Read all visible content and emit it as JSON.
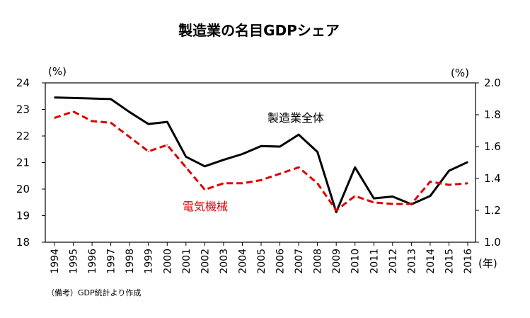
{
  "chart_data": {
    "type": "line",
    "title": "製造業の名目GDPシェア",
    "left_unit": "(%)",
    "right_unit": "(%)",
    "x_unit": "(年)",
    "source": "（備考）GDP統計より作成",
    "x": [
      "1994",
      "1995",
      "1996",
      "1997",
      "1998",
      "1999",
      "2000",
      "2001",
      "2002",
      "2003",
      "2004",
      "2005",
      "2006",
      "2007",
      "2008",
      "2009",
      "2010",
      "2011",
      "2012",
      "2013",
      "2014",
      "2015",
      "2016"
    ],
    "left_axis": {
      "ylim": [
        18,
        24
      ],
      "ticks": [
        "24",
        "23",
        "22",
        "21",
        "20",
        "19",
        "18"
      ]
    },
    "right_axis": {
      "ylim": [
        1.0,
        2.0
      ],
      "ticks": [
        "2.0",
        "1.8",
        "1.6",
        "1.4",
        "1.2",
        "1.0"
      ]
    },
    "series": [
      {
        "name": "製造業全体",
        "axis": "left",
        "color": "#000000",
        "style": "solid",
        "values": [
          23.45,
          23.43,
          23.41,
          23.39,
          22.9,
          22.45,
          22.53,
          21.22,
          20.86,
          21.1,
          21.32,
          21.62,
          21.6,
          22.05,
          21.4,
          19.13,
          20.82,
          19.65,
          19.72,
          19.43,
          19.74,
          20.69,
          21.02
        ]
      },
      {
        "name": "電気機械",
        "axis": "right",
        "color": "#e00000",
        "style": "dashed",
        "values": [
          1.78,
          1.82,
          1.76,
          1.75,
          1.66,
          1.57,
          1.61,
          1.47,
          1.33,
          1.37,
          1.37,
          1.39,
          1.43,
          1.47,
          1.37,
          1.2,
          1.29,
          1.25,
          1.24,
          1.24,
          1.38,
          1.36,
          1.37
        ]
      }
    ]
  }
}
